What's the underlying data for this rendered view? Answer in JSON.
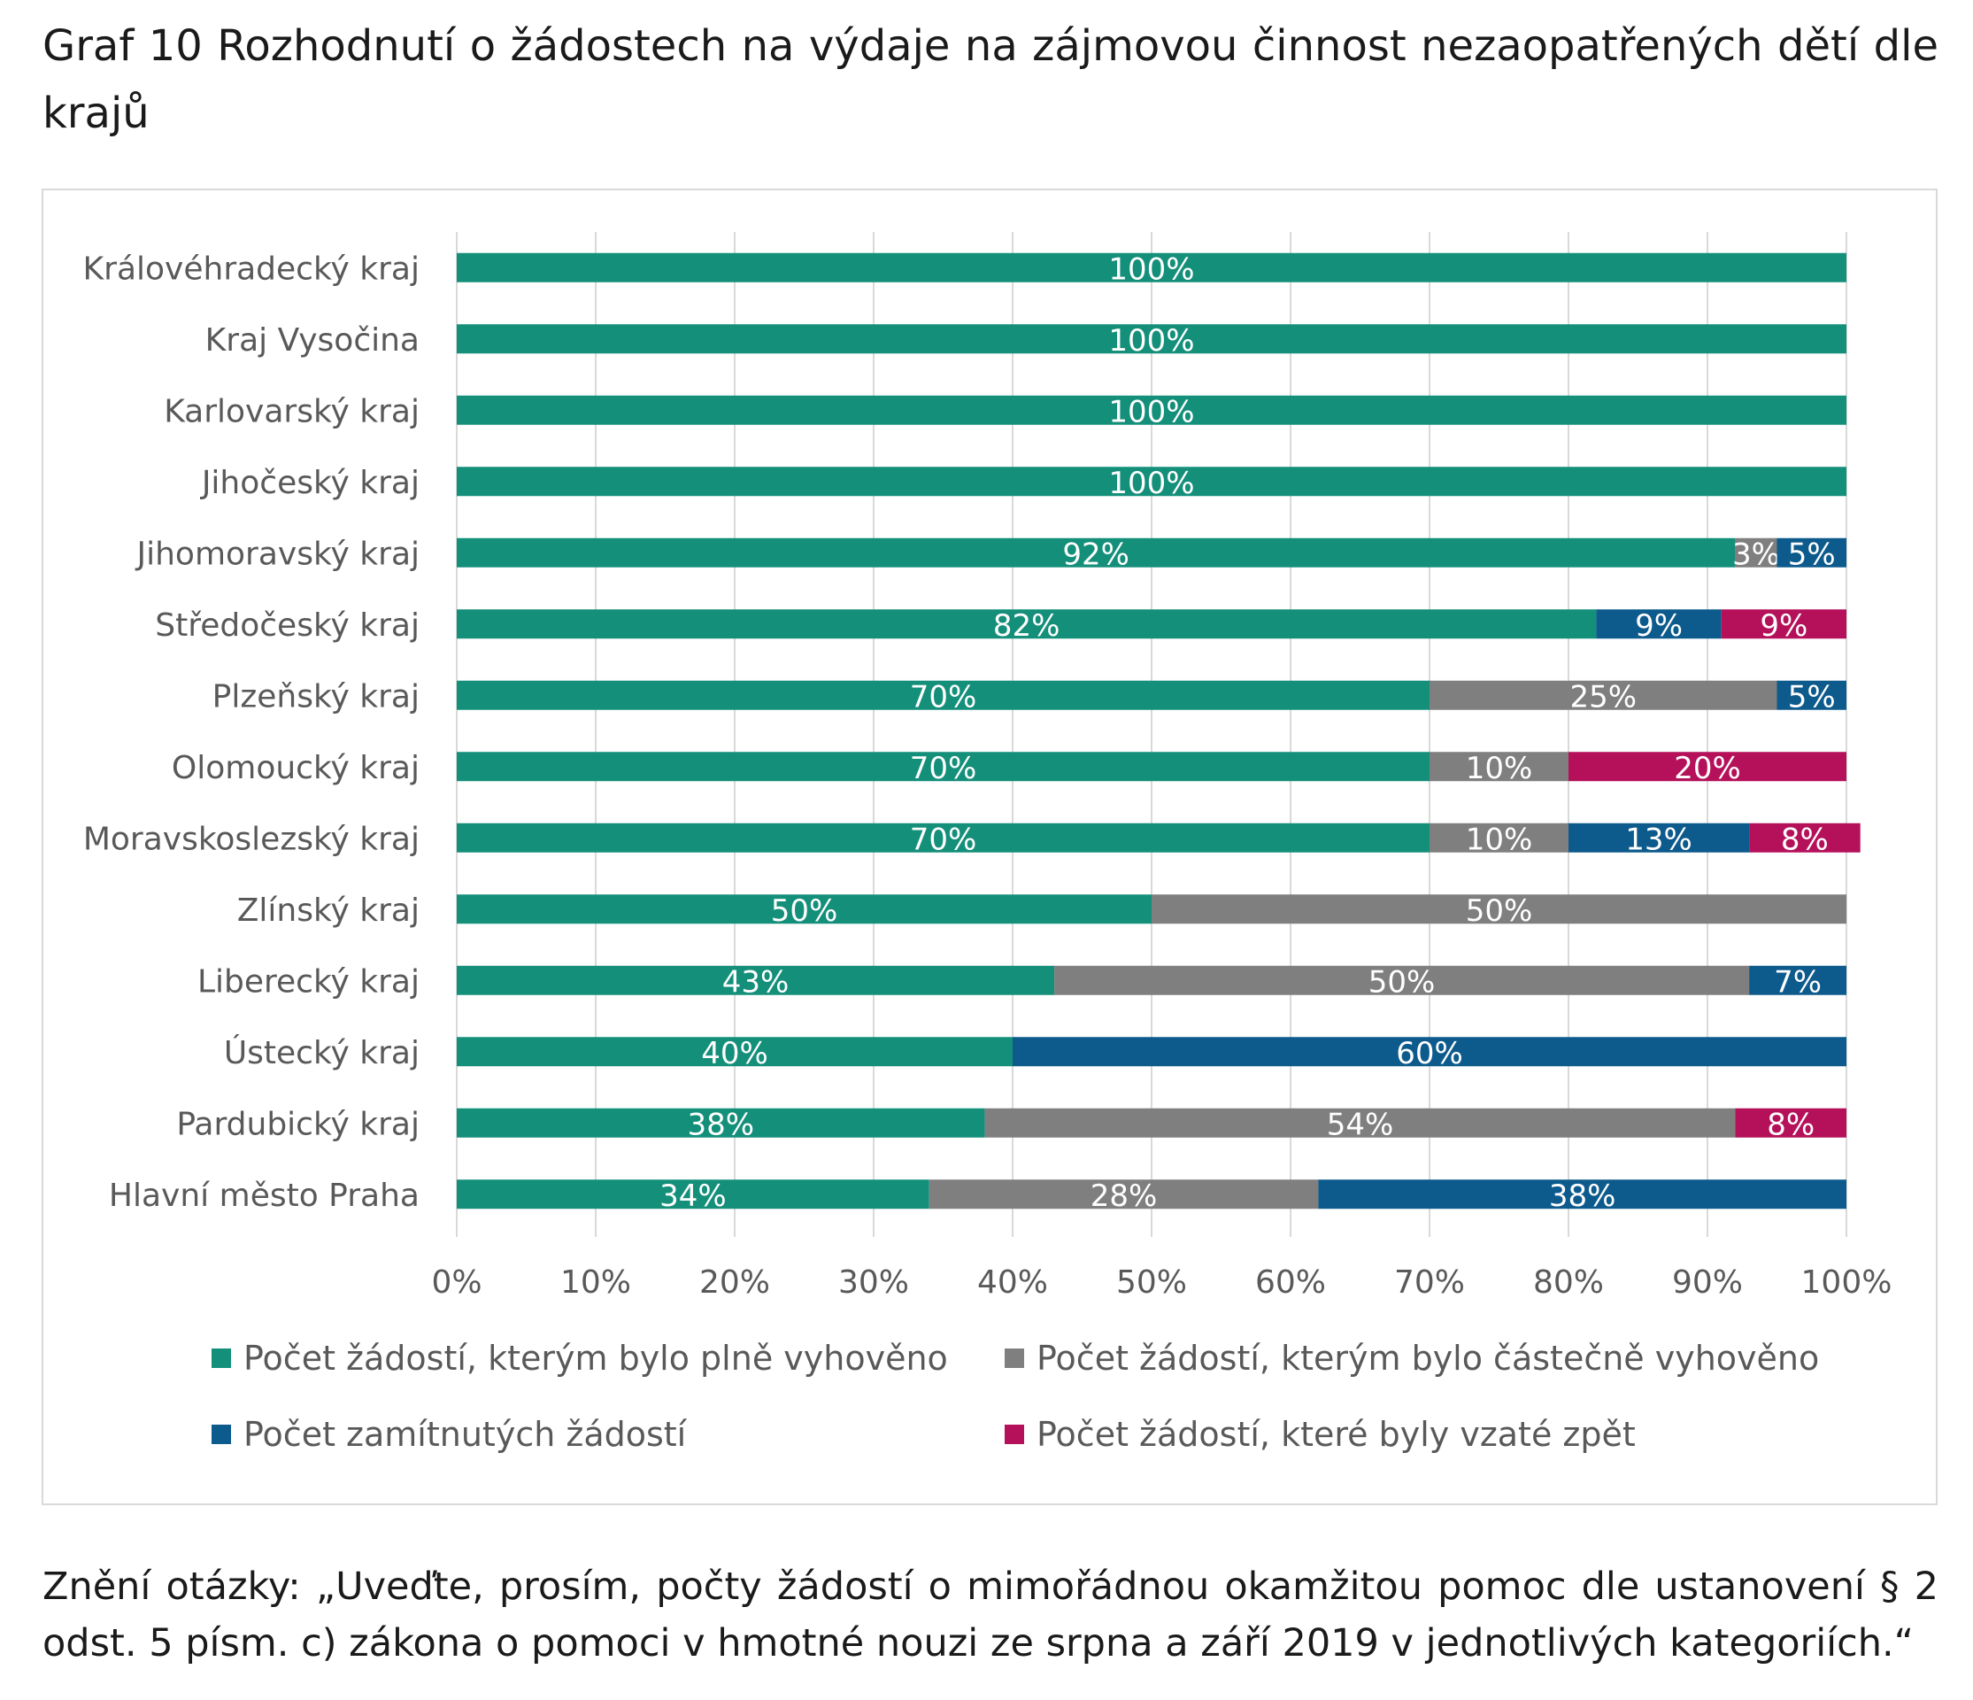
{
  "caption": "Graf 10 Rozhodnutí o žádostech na výdaje na zájmovou činnost nezaopatřených dětí dle krajů",
  "footnote": "Znění otázky: „Uveďte, prosím, počty žádostí o mimořádnou okamžitou pomoc dle ustanovení § 2 odst. 5 písm. c) zákona o pomoci v hmotné nouzi ze srpna a září 2019 v jednotlivých kategoriích.“",
  "chart_data": {
    "type": "bar",
    "orientation": "horizontal",
    "stacked": true,
    "percent": true,
    "categories": [
      "Královéhradecký kraj",
      "Kraj Vysočina",
      "Karlovarský kraj",
      "Jihočeský kraj",
      "Jihomoravský kraj",
      "Středočeský kraj",
      "Plzeňský kraj",
      "Olomoucký kraj",
      "Moravskoslezský kraj",
      "Zlínský kraj",
      "Liberecký kraj",
      "Ústecký kraj",
      "Pardubický kraj",
      "Hlavní město Praha"
    ],
    "series": [
      {
        "name": "Počet žádostí, kterým bylo plně vyhověno",
        "color": "#148f7a",
        "values": [
          100,
          100,
          100,
          100,
          92,
          82,
          70,
          70,
          70,
          50,
          43,
          40,
          38,
          34
        ]
      },
      {
        "name": "Počet žádostí, kterým bylo částečně vyhověno",
        "color": "#7f7f7f",
        "values": [
          0,
          0,
          0,
          0,
          3,
          0,
          25,
          10,
          10,
          50,
          50,
          0,
          54,
          28
        ]
      },
      {
        "name": "Počet zamítnutých žádostí",
        "color": "#0d5a8c",
        "values": [
          0,
          0,
          0,
          0,
          5,
          9,
          5,
          0,
          13,
          0,
          7,
          60,
          0,
          38
        ]
      },
      {
        "name": "Počet žádostí, které byly vzaté zpět",
        "color": "#b5115a",
        "values": [
          0,
          0,
          0,
          0,
          0,
          9,
          0,
          20,
          8,
          0,
          0,
          0,
          8,
          0
        ]
      }
    ],
    "xlim": [
      0,
      100
    ],
    "xticks": [
      "0%",
      "10%",
      "20%",
      "30%",
      "40%",
      "50%",
      "60%",
      "70%",
      "80%",
      "90%",
      "100%"
    ],
    "grid": "vertical",
    "legend_position": "bottom",
    "data_label_color": "#ffffff",
    "tick_label_color": "#595959",
    "gridline_color": "#d9d9d9"
  }
}
